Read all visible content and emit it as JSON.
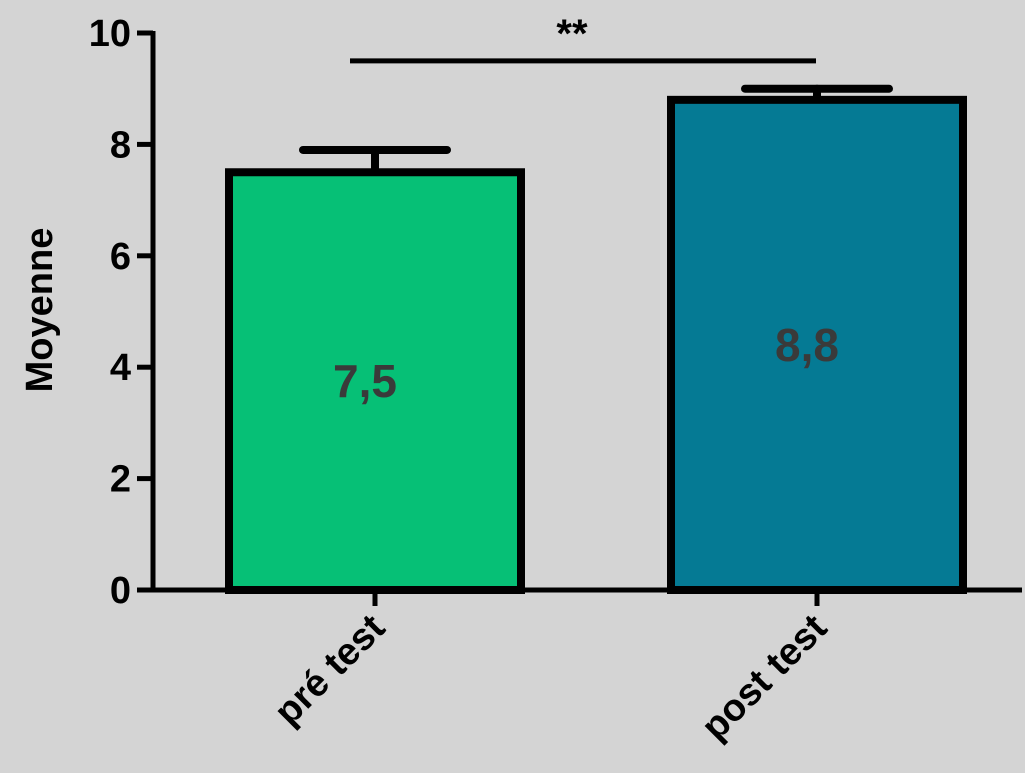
{
  "chart_data": {
    "type": "bar",
    "categories": [
      "pré test",
      "post test"
    ],
    "values": [
      7.5,
      8.8
    ],
    "value_labels": [
      "7,5",
      "8,8"
    ],
    "error_upper": [
      7.9,
      9.0
    ],
    "colors": [
      "#06c076",
      "#057a94"
    ],
    "ylabel": "Moyenne",
    "ylim": [
      0,
      10
    ],
    "yticks": [
      0,
      2,
      4,
      6,
      8,
      10
    ],
    "ytick_labels": [
      "0",
      "2",
      "4",
      "6",
      "8",
      "10"
    ],
    "grid": false,
    "significance": {
      "between": [
        "pré test",
        "post test"
      ],
      "label": "**",
      "level": 9.5
    }
  }
}
